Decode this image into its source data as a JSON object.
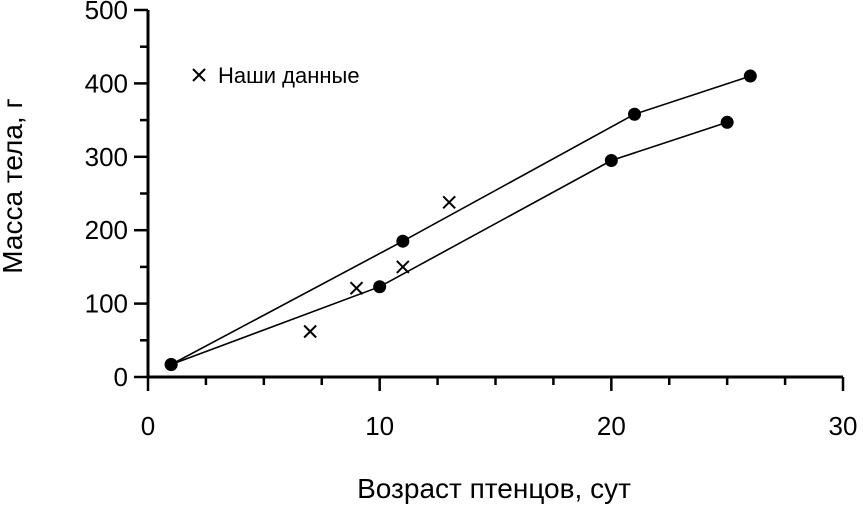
{
  "chart_data": {
    "type": "scatter",
    "title": "",
    "xlabel": "Возраст птенцов, сут",
    "ylabel": "Масса тела, г",
    "xlim": [
      0,
      30
    ],
    "ylim": [
      0,
      500
    ],
    "x_major_ticks": [
      0,
      10,
      20,
      30
    ],
    "x_minor_step": 2.5,
    "y_major_ticks": [
      0,
      100,
      200,
      300,
      400,
      500
    ],
    "y_minor_step": 50,
    "grid": false,
    "legend_position": "top-left",
    "series": [
      {
        "marker": "dot",
        "line": true,
        "points": [
          [
            1,
            17
          ],
          [
            11,
            185
          ],
          [
            21,
            358
          ],
          [
            26,
            410
          ]
        ]
      },
      {
        "marker": "dot",
        "line": true,
        "points": [
          [
            1,
            17
          ],
          [
            10,
            123
          ],
          [
            20,
            295
          ],
          [
            25,
            347
          ]
        ]
      },
      {
        "name": "Наши данные",
        "marker": "cross",
        "line": false,
        "points": [
          [
            7,
            62
          ],
          [
            9,
            121
          ],
          [
            11,
            150
          ],
          [
            13,
            238
          ]
        ]
      }
    ]
  }
}
